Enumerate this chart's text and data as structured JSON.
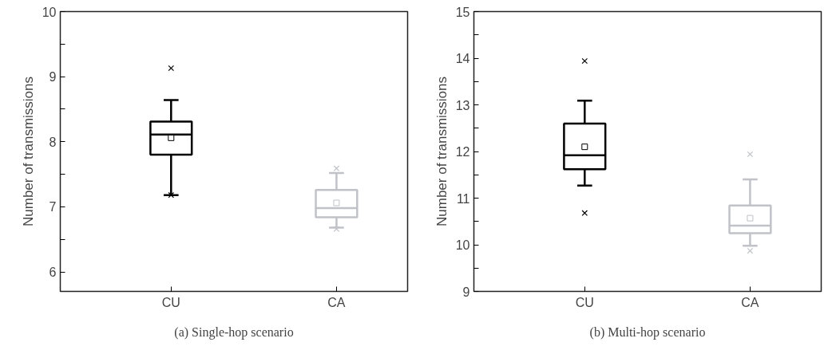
{
  "chart_data": [
    {
      "type": "box",
      "title": "(a) Single-hop scenario",
      "ylabel": "Number of transmissions",
      "categories": [
        "CU",
        "CA"
      ],
      "colors": [
        "#000000",
        "#c0c2c8"
      ],
      "boxes": [
        {
          "low": 7.18,
          "q1": 7.8,
          "median": 8.11,
          "q3": 8.31,
          "high": 8.64,
          "mean": 8.06,
          "outliers": [
            9.13,
            7.18
          ]
        },
        {
          "low": 6.68,
          "q1": 6.84,
          "median": 6.98,
          "q3": 7.26,
          "high": 7.52,
          "mean": 7.06,
          "outliers": [
            7.59,
            6.66
          ]
        }
      ],
      "ylim": [
        5.7,
        10
      ],
      "yticks": [
        6,
        {
          "value": 6.5,
          "label": null
        },
        7,
        {
          "value": 7.5,
          "label": null
        },
        8,
        {
          "value": 8.5,
          "label": null
        },
        9,
        {
          "value": 9.5,
          "label": null
        },
        10
      ],
      "grid": false
    },
    {
      "type": "box",
      "title": "(b) Multi-hop scenario",
      "ylabel": "Number of transmissions",
      "categories": [
        "CU",
        "CA"
      ],
      "colors": [
        "#000000",
        "#c0c2c8"
      ],
      "boxes": [
        {
          "low": 11.27,
          "q1": 11.62,
          "median": 11.92,
          "q3": 12.6,
          "high": 13.09,
          "mean": 12.1,
          "outliers": [
            13.94,
            10.68
          ]
        },
        {
          "low": 9.98,
          "q1": 10.25,
          "median": 10.41,
          "q3": 10.84,
          "high": 11.4,
          "mean": 10.57,
          "outliers": [
            11.94,
            9.87
          ]
        }
      ],
      "ylim": [
        9,
        15
      ],
      "yticks": [
        9,
        {
          "value": 9.5,
          "label": null
        },
        10,
        {
          "value": 10.5,
          "label": null
        },
        11,
        {
          "value": 11.5,
          "label": null
        },
        12,
        {
          "value": 12.5,
          "label": null
        },
        13,
        {
          "value": 13.5,
          "label": null
        },
        14,
        {
          "value": 14.5,
          "label": null
        },
        15
      ],
      "grid": false
    }
  ]
}
